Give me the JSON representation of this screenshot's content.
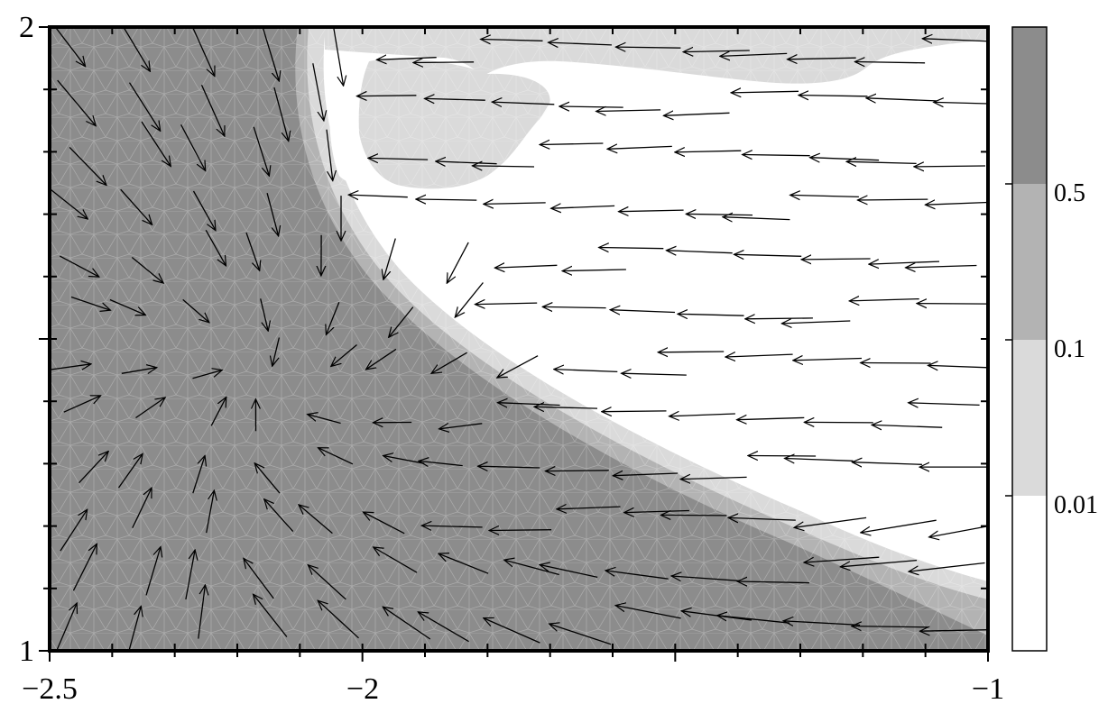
{
  "chart_data": {
    "type": "vector-field",
    "title": "",
    "xlabel": "",
    "ylabel": "",
    "xlim": [
      -2.5,
      -1
    ],
    "ylim": [
      1,
      2
    ],
    "x_ticks": [
      {
        "value": -2.5,
        "label": "−2.5"
      },
      {
        "value": -2,
        "label": "−2"
      },
      {
        "value": -1,
        "label": "−1"
      }
    ],
    "y_ticks": [
      {
        "value": 1,
        "label": "1"
      },
      {
        "value": 2,
        "label": "2"
      }
    ],
    "colorbar": {
      "levels": [
        {
          "label": "0.01",
          "value": 0.01
        },
        {
          "label": "0.1",
          "value": 0.1
        },
        {
          "label": "0.5",
          "value": 0.5
        }
      ],
      "band_colors": [
        "#ffffff",
        "#dadada",
        "#b3b3b3",
        "#8c8c8c"
      ]
    },
    "field_colors": {
      "lowest": "#ffffff",
      "low": "#dadada",
      "mid": "#b3b3b3",
      "high": "#8c8c8c"
    },
    "grid": false
  }
}
